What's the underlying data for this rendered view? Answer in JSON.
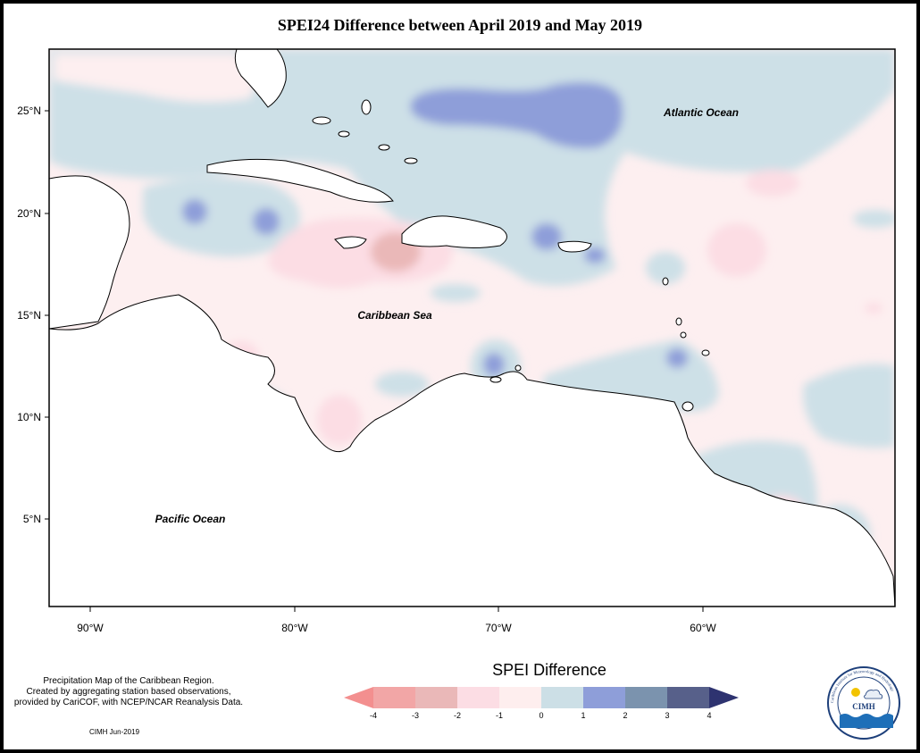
{
  "title": "SPEI24 Difference between April 2019 and May 2019",
  "map": {
    "lat_ticks": [
      "25°N",
      "20°N",
      "15°N",
      "10°N",
      "5°N"
    ],
    "lon_ticks": [
      "90°W",
      "80°W",
      "70°W",
      "60°W"
    ],
    "extent": {
      "lon_min": -92,
      "lon_max": -49,
      "lat_min": 1,
      "lat_max": 29
    },
    "region_labels": {
      "atlantic": "Atlantic Ocean",
      "caribbean": "Caribbean Sea",
      "pacific": "Pacific Ocean"
    }
  },
  "legend": {
    "title": "SPEI Difference",
    "ticks": [
      "-4",
      "-3",
      "-2",
      "-1",
      "0",
      "1",
      "2",
      "3",
      "4"
    ],
    "colors": [
      "#f38f8f",
      "#f2a6a6",
      "#eab8b8",
      "#fcdde4",
      "#feeeee",
      "#ccdfe6",
      "#8e9ed9",
      "#7b93ae",
      "#57608a",
      "#2e3370"
    ]
  },
  "credit": {
    "lines": [
      "Precipitation Map of the Caribbean Region.",
      "Created by aggregating station based observations,",
      "provided by CariCOF, with NCEP/NCAR Reanalysis Data."
    ],
    "stamp": "CIMH Jun-2019"
  },
  "logo": {
    "text": "CIMH",
    "ring_text": "Caribbean Institute for Meteorology and Hydrology"
  }
}
